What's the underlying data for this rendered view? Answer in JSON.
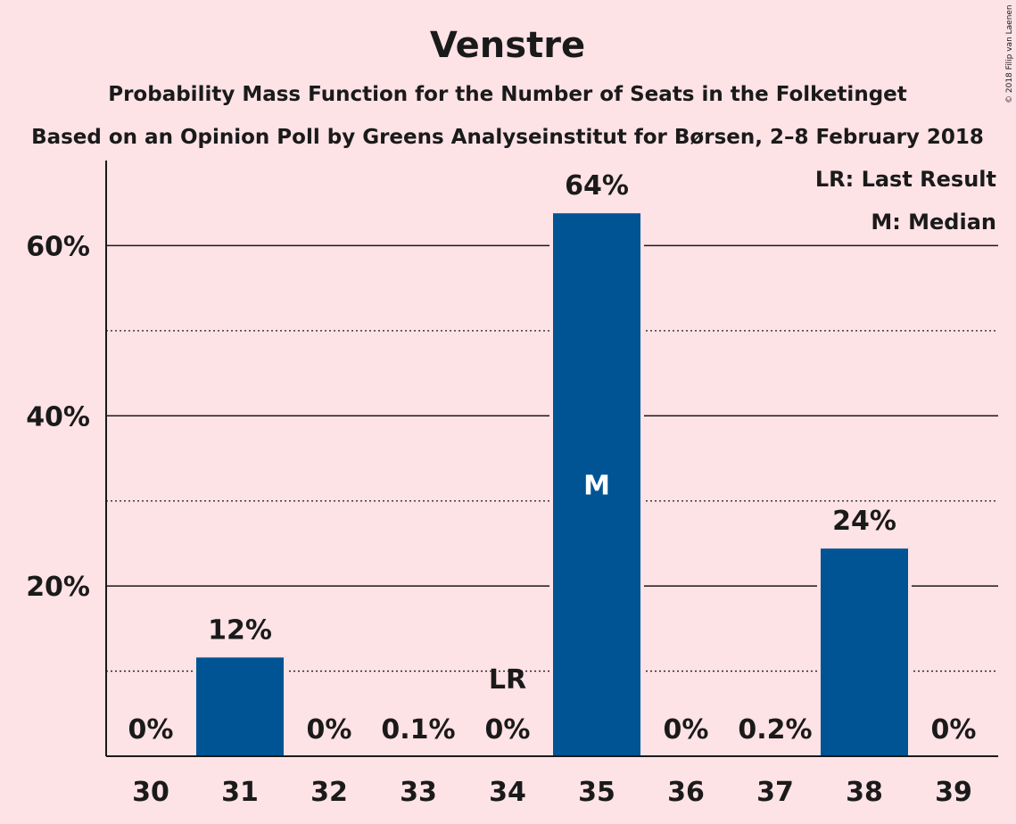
{
  "chart_data": {
    "type": "bar",
    "title": "Venstre",
    "subtitle": "Probability Mass Function for the Number of Seats in the Folketinget",
    "subtitle2": "Based on an Opinion Poll by Greens Analyseinstitut for Børsen, 2–8 February 2018",
    "copyright": "© 2018 Filip van Laenen",
    "categories": [
      "30",
      "31",
      "32",
      "33",
      "34",
      "35",
      "36",
      "37",
      "38",
      "39"
    ],
    "values": [
      0,
      11.6,
      0,
      0.1,
      0,
      63.8,
      0,
      0.2,
      24.4,
      0
    ],
    "data_labels": [
      "0%",
      "12%",
      "0%",
      "0.1%",
      "0%",
      "64%",
      "0%",
      "0.2%",
      "24%",
      "0%"
    ],
    "ylim": [
      0,
      70
    ],
    "yticks": [
      20,
      40,
      60
    ],
    "ytick_labels": [
      "20%",
      "40%",
      "60%"
    ],
    "minor_gridlines": [
      10,
      30,
      50
    ],
    "bar_color": "#005494",
    "background_color": "#fde2e6",
    "last_result_category": "34",
    "last_result_label": "LR",
    "median_category": "35",
    "median_label": "M",
    "legend": [
      "LR: Last Result",
      "M: Median"
    ],
    "legend_position": "top-right"
  }
}
